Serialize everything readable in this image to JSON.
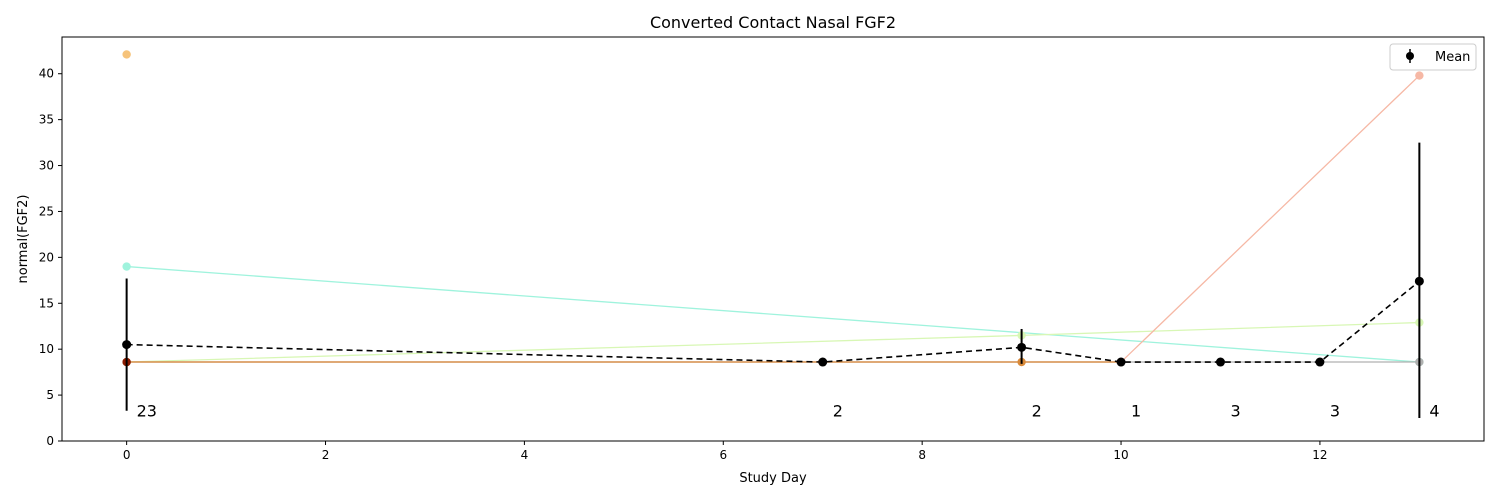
{
  "chart_data": {
    "type": "line",
    "title": "Converted Contact Nasal FGF2",
    "xlabel": "Study Day",
    "ylabel": "normal(FGF2)",
    "xlim": [
      -0.65,
      13.65
    ],
    "ylim": [
      0,
      44
    ],
    "xticks": [
      0,
      2,
      4,
      6,
      8,
      10,
      12
    ],
    "yticks": [
      0,
      5,
      10,
      15,
      20,
      25,
      30,
      35,
      40
    ],
    "legend": {
      "position": "top-right",
      "entries": [
        "Mean"
      ]
    },
    "subjects": [
      {
        "color": "#f6c37a",
        "points": [
          [
            0,
            42.1
          ]
        ]
      },
      {
        "color": "#9ff3dd",
        "points": [
          [
            0,
            19.0
          ],
          [
            13,
            8.6
          ]
        ]
      },
      {
        "color": "#d8f7b5",
        "points": [
          [
            0,
            8.6
          ],
          [
            9,
            11.5
          ],
          [
            13,
            12.9
          ]
        ]
      },
      {
        "color": "#f6b8a5",
        "points": [
          [
            0,
            8.6
          ],
          [
            10,
            8.6
          ],
          [
            13,
            39.8
          ]
        ]
      },
      {
        "color": "#b0b0b0",
        "points": [
          [
            0,
            8.6
          ],
          [
            11,
            8.6
          ],
          [
            12,
            8.6
          ],
          [
            13,
            8.6
          ]
        ]
      },
      {
        "color": "#d98a3a",
        "points": [
          [
            0,
            8.6
          ],
          [
            7,
            8.6
          ],
          [
            9,
            8.6
          ],
          [
            10,
            8.6
          ]
        ]
      },
      {
        "color": "#8b1a00",
        "points": [
          [
            0,
            8.6
          ]
        ]
      }
    ],
    "mean": {
      "name": "Mean",
      "x": [
        0,
        7,
        9,
        10,
        11,
        12,
        13
      ],
      "y": [
        10.5,
        8.6,
        10.2,
        8.6,
        8.6,
        8.6,
        17.4
      ],
      "err_low": [
        3.3,
        8.6,
        8.4,
        8.6,
        8.6,
        8.6,
        2.5
      ],
      "err_high": [
        17.7,
        8.6,
        12.2,
        8.6,
        8.6,
        8.6,
        32.5
      ]
    },
    "counts": [
      {
        "x": 0,
        "label": "23"
      },
      {
        "x": 7,
        "label": "2"
      },
      {
        "x": 9,
        "label": "2"
      },
      {
        "x": 10,
        "label": "1"
      },
      {
        "x": 11,
        "label": "3"
      },
      {
        "x": 12,
        "label": "3"
      },
      {
        "x": 13,
        "label": "4"
      }
    ]
  }
}
